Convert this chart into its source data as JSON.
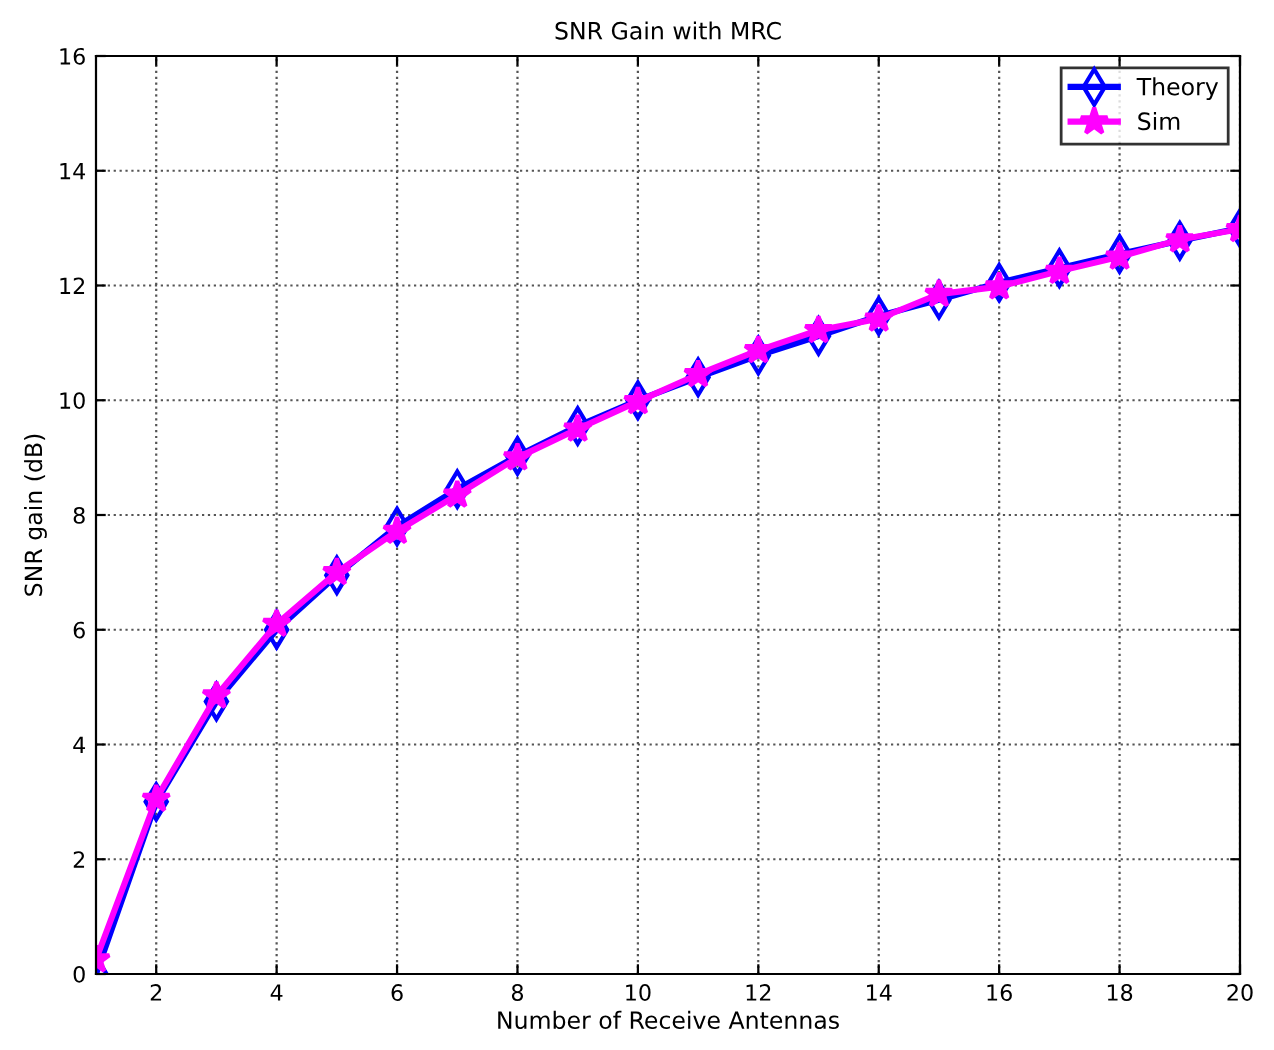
{
  "chart_data": {
    "type": "line",
    "title": "SNR Gain with MRC",
    "xlabel": "Number of Receive Antennas",
    "ylabel": "SNR gain (dB)",
    "x": [
      1,
      2,
      3,
      4,
      5,
      6,
      7,
      8,
      9,
      10,
      11,
      12,
      13,
      14,
      15,
      16,
      17,
      18,
      19,
      20
    ],
    "series": [
      {
        "name": "Theory",
        "color": "#0000ff",
        "marker": "diamond",
        "values": [
          0,
          3.0,
          4.75,
          6.0,
          6.95,
          7.8,
          8.45,
          9.03,
          9.55,
          10.0,
          10.4,
          10.78,
          11.12,
          11.47,
          11.75,
          12.05,
          12.3,
          12.55,
          12.78,
          13.0
        ]
      },
      {
        "name": "Sim",
        "color": "#ff00ff",
        "marker": "star",
        "values": [
          0.25,
          3.05,
          4.85,
          6.1,
          7.0,
          7.72,
          8.35,
          9.0,
          9.5,
          9.98,
          10.45,
          10.87,
          11.22,
          11.42,
          11.85,
          11.98,
          12.25,
          12.5,
          12.8,
          12.98
        ]
      }
    ],
    "xlim": [
      1,
      20
    ],
    "xticks": [
      2,
      4,
      6,
      8,
      10,
      12,
      14,
      16,
      18,
      20
    ],
    "ylim": [
      0,
      16
    ],
    "yticks": [
      0,
      2,
      4,
      6,
      8,
      10,
      12,
      14,
      16
    ],
    "grid": true,
    "legend": "top right",
    "line_style": "solid"
  }
}
